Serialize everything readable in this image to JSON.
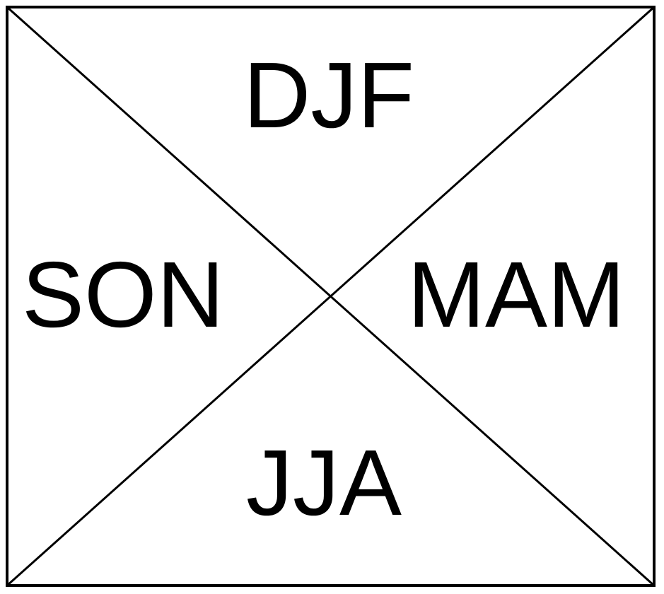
{
  "diagram": {
    "labels": {
      "top": "DJF",
      "left": "SON",
      "right": "MAM",
      "bottom": "JJA"
    },
    "colors": {
      "background": "#ffffff",
      "stroke": "#000000",
      "text": "#000000"
    }
  }
}
